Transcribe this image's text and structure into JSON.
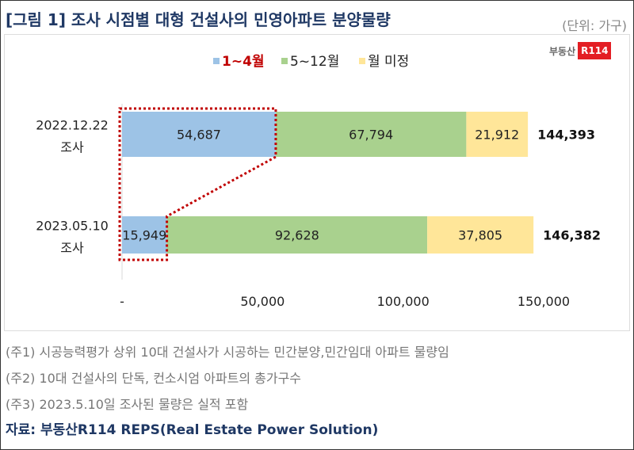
{
  "title": "[그림 1] 조사 시점별 대형 건설사의 민영아파트 분양물량",
  "unit": "(단위: 가구)",
  "logo": {
    "text": "부동산",
    "badge": "R114"
  },
  "notes": [
    "(주1) 시공능력평가 상위 10대 건설사가 시공하는 민간분양,민간임대 아파트 물량임",
    "(주2) 10대 건설사의 단독, 컨소시엄 아파트의 총가구수",
    "(주3) 2023.5.10일 조사된 물량은 실적 포함"
  ],
  "source": "자료: 부동산R114 REPS(Real Estate Power Solution)",
  "chart_data": {
    "type": "bar",
    "orientation": "horizontal",
    "stacked": true,
    "categories": [
      [
        "2022.12.22",
        "조사"
      ],
      [
        "2023.05.10",
        "조사"
      ]
    ],
    "series": [
      {
        "name": "1~4월",
        "values": [
          54687,
          15949
        ],
        "color": "#9dc3e6",
        "labels": [
          "54,687",
          "15,949"
        ]
      },
      {
        "name": "5~12월",
        "values": [
          67794,
          92628
        ],
        "color": "#a9d18e",
        "labels": [
          "67,794",
          "92,628"
        ]
      },
      {
        "name": "월 미정",
        "values": [
          21912,
          37805
        ],
        "color": "#ffe699",
        "labels": [
          "21,912",
          "37,805"
        ]
      }
    ],
    "totals": [
      "144,393",
      "146,382"
    ],
    "xticks": [
      {
        "v": 0,
        "label": "-"
      },
      {
        "v": 50000,
        "label": "50,000"
      },
      {
        "v": 100000,
        "label": "100,000"
      },
      {
        "v": 150000,
        "label": "150,000"
      }
    ],
    "xlim": [
      0,
      150000
    ],
    "legend": "top-center",
    "legend_highlight": "#c00000"
  }
}
